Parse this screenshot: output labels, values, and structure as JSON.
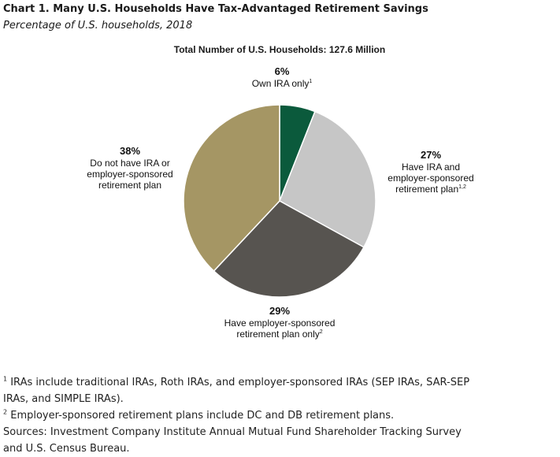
{
  "header": {
    "title": "Chart 1. Many U.S. Households Have Tax-Advantaged Retirement Savings",
    "subtitle": "Percentage of U.S. households, 2018"
  },
  "chart_data": {
    "type": "pie",
    "title": "Total Number of U.S. Households: 127.6 Million",
    "slices": [
      {
        "label": "Own IRA only",
        "note_ref": "1",
        "value": 6,
        "value_label": "6%",
        "color": "#0b5a3c"
      },
      {
        "label": "Have IRA and employer-sponsored retirement plan",
        "note_ref": "1,2",
        "value": 27,
        "value_label": "27%",
        "color": "#c6c6c6"
      },
      {
        "label": "Have employer-sponsored retirement plan only",
        "note_ref": "2",
        "value": 29,
        "value_label": "29%",
        "color": "#575450"
      },
      {
        "label": "Do not have IRA or employer-sponsored retirement plan",
        "note_ref": "",
        "value": 38,
        "value_label": "38%",
        "color": "#a59664"
      }
    ]
  },
  "notes": {
    "n1_mark": "1",
    "n1": " IRAs include traditional IRAs, Roth IRAs, and employer-sponsored IRAs (SEP IRAs, SAR-SEP IRAs, and SIMPLE IRAs).",
    "n2_mark": "2",
    "n2": " Employer-sponsored retirement plans include DC and DB retirement plans.",
    "sources": "Sources: Investment Company Institute Annual Mutual Fund Shareholder Tracking Survey and U.S. Census Bureau."
  }
}
